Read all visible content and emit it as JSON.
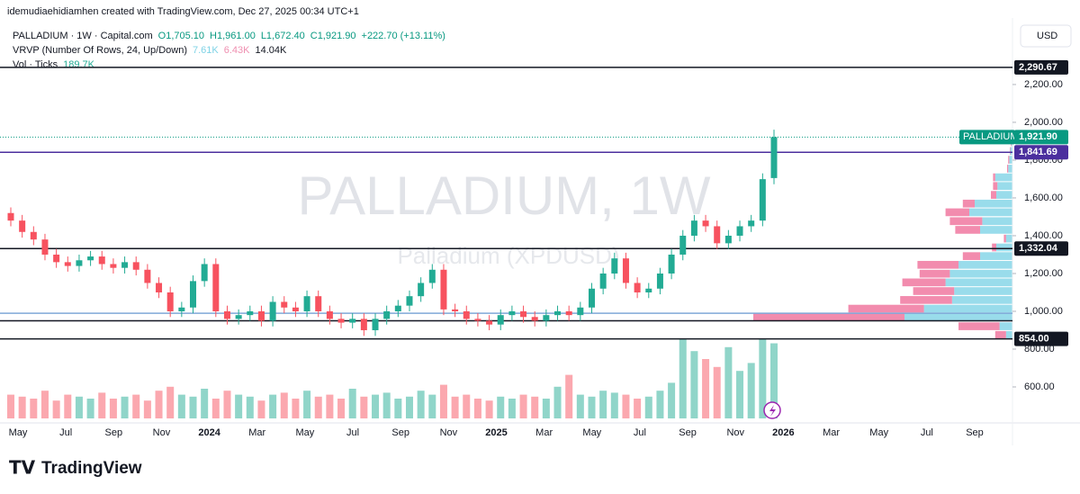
{
  "attribution": "idemudiaehidiamhen created with TradingView.com, Dec 27, 2025 00:34 UTC+1",
  "legend": {
    "symbol": "PALLADIUM · 1W · Capital.com",
    "open": "O1,705.10",
    "high": "H1,961.00",
    "low": "L1,672.40",
    "close": "C1,921.90",
    "change": "+222.70 (+13.11%)",
    "vrvp": "VRVP (Number Of Rows, 24, Up/Down)",
    "vrvp_up": "7.61K",
    "vrvp_down": "6.43K",
    "vrvp_total": "14.04K",
    "vol": "Vol · Ticks",
    "vol_value": "189.7K"
  },
  "currency": "USD",
  "watermark": {
    "title": "PALLADIUM, 1W",
    "subtitle": "Palladium (XPDUSD)"
  },
  "brand": "TradingView",
  "chart_data": {
    "type": "candlestick",
    "open": [
      1520,
      1480,
      1420,
      1380,
      1300,
      1260,
      1240,
      1270,
      1290,
      1250,
      1230,
      1260,
      1220,
      1150,
      1100,
      1000,
      1020,
      1160,
      1250,
      1000,
      960,
      980,
      1000,
      950,
      1050,
      1020,
      1000,
      1080,
      1000,
      960,
      940,
      960,
      900,
      960,
      1000,
      1030,
      1080,
      1150,
      1220,
      1010,
      1000,
      960,
      950,
      930,
      980,
      1000,
      970,
      950,
      980,
      1000,
      980,
      1020,
      1120,
      1200,
      1280,
      1150,
      1100,
      1120,
      1200,
      1300,
      1400,
      1480,
      1450,
      1360,
      1400,
      1450,
      1480,
      1705.1
    ],
    "high": [
      1550,
      1510,
      1450,
      1410,
      1330,
      1290,
      1300,
      1320,
      1320,
      1280,
      1290,
      1290,
      1250,
      1180,
      1130,
      1050,
      1190,
      1280,
      1280,
      1030,
      1010,
      1030,
      1030,
      1080,
      1080,
      1050,
      1110,
      1110,
      1030,
      990,
      990,
      990,
      990,
      1030,
      1060,
      1110,
      1180,
      1250,
      1250,
      1040,
      1030,
      990,
      980,
      1010,
      1030,
      1030,
      1000,
      1010,
      1030,
      1030,
      1050,
      1150,
      1230,
      1310,
      1310,
      1180,
      1150,
      1230,
      1330,
      1430,
      1510,
      1510,
      1480,
      1430,
      1480,
      1510,
      1730,
      1961
    ],
    "low": [
      1450,
      1390,
      1350,
      1270,
      1230,
      1210,
      1210,
      1240,
      1220,
      1200,
      1200,
      1190,
      1120,
      1070,
      970,
      970,
      990,
      1130,
      970,
      930,
      930,
      950,
      920,
      920,
      990,
      970,
      970,
      970,
      930,
      910,
      910,
      870,
      870,
      930,
      970,
      1000,
      1050,
      1120,
      980,
      970,
      930,
      920,
      900,
      900,
      950,
      940,
      920,
      920,
      950,
      950,
      950,
      990,
      1090,
      1170,
      1120,
      1070,
      1070,
      1090,
      1170,
      1270,
      1370,
      1420,
      1330,
      1330,
      1370,
      1420,
      1450,
      1672.4
    ],
    "close": [
      1480,
      1420,
      1380,
      1300,
      1260,
      1240,
      1270,
      1290,
      1250,
      1230,
      1260,
      1220,
      1150,
      1100,
      1000,
      1020,
      1160,
      1250,
      1000,
      960,
      980,
      1000,
      950,
      1050,
      1020,
      1000,
      1080,
      1000,
      960,
      940,
      960,
      900,
      960,
      1000,
      1030,
      1080,
      1150,
      1220,
      1010,
      1000,
      960,
      950,
      930,
      980,
      1000,
      970,
      950,
      980,
      1000,
      980,
      1020,
      1120,
      1200,
      1280,
      1150,
      1100,
      1120,
      1200,
      1300,
      1400,
      1480,
      1450,
      1360,
      1400,
      1450,
      1480,
      1699.2,
      1921.9
    ],
    "volume": [
      60,
      55,
      50,
      70,
      45,
      60,
      55,
      50,
      65,
      50,
      55,
      60,
      45,
      70,
      80,
      60,
      55,
      75,
      50,
      70,
      60,
      55,
      45,
      60,
      65,
      50,
      70,
      55,
      60,
      50,
      75,
      55,
      60,
      65,
      50,
      55,
      70,
      60,
      85,
      55,
      60,
      50,
      45,
      55,
      50,
      60,
      55,
      50,
      80,
      110,
      60,
      55,
      70,
      65,
      60,
      50,
      55,
      70,
      90,
      200,
      170,
      150,
      130,
      180,
      120,
      140,
      200,
      189.7
    ],
    "vlim": [
      0,
      250
    ],
    "up_color": "#22ab94",
    "down_color": "#f7525f",
    "ylim": [
      409.5,
      2552
    ],
    "yticks": [
      {
        "value": 600,
        "label": "600.00"
      },
      {
        "value": 800,
        "label": "800.00"
      },
      {
        "value": 1000,
        "label": "1,000.00"
      },
      {
        "value": 1200,
        "label": "1,200.00"
      },
      {
        "value": 1400,
        "label": "1,400.00"
      },
      {
        "value": 1600,
        "label": "1,600.00"
      },
      {
        "value": 1800,
        "label": "1,800.00"
      },
      {
        "value": 2000,
        "label": "2,000.00"
      },
      {
        "value": 2200,
        "label": "2,200.00"
      }
    ],
    "xticks": [
      "May",
      "Jul",
      "Sep",
      "Nov",
      "2024",
      "Mar",
      "May",
      "Jul",
      "Sep",
      "Nov",
      "2025",
      "Mar",
      "May",
      "Jul",
      "Sep",
      "Nov",
      "2026",
      "Mar",
      "May",
      "Jul",
      "Sep"
    ],
    "levels": [
      {
        "value": 2290.67,
        "label": "2,290.67",
        "color": "#131722"
      },
      {
        "value": 1841.69,
        "label": "1,841.69",
        "color": "#4b2f9e"
      },
      {
        "value": 1332.04,
        "label": "1,332.04",
        "color": "#131722"
      },
      {
        "value": 854,
        "label": "854.00",
        "color": "#131722"
      }
    ],
    "lines": [
      {
        "value": 950,
        "color": "#131722"
      },
      {
        "value": 990,
        "color": "#7fa8d8"
      }
    ],
    "last_price_label": "1,921.90",
    "last_tag": "PALLADIUM",
    "last_color": "#089981",
    "vrvp_prices": [
      875,
      921,
      968,
      1014,
      1060,
      1107,
      1153,
      1199,
      1246,
      1292,
      1338,
      1385,
      1431,
      1477,
      1524,
      1570,
      1616,
      1663,
      1709,
      1755,
      1802,
      1848,
      1894,
      1940
    ],
    "vrvp_up": [
      60,
      120,
      1000,
      820,
      560,
      540,
      620,
      580,
      500,
      300,
      150,
      60,
      300,
      280,
      400,
      350,
      150,
      140,
      160,
      40,
      30,
      20,
      10,
      10
    ],
    "vrvp_down": [
      100,
      380,
      1400,
      700,
      480,
      380,
      400,
      280,
      380,
      160,
      40,
      20,
      230,
      300,
      220,
      110,
      50,
      40,
      20,
      10,
      10,
      5,
      5,
      5
    ],
    "vrvp_up_color": "#7fd3e6",
    "vrvp_down_color": "#ef6f9a"
  }
}
